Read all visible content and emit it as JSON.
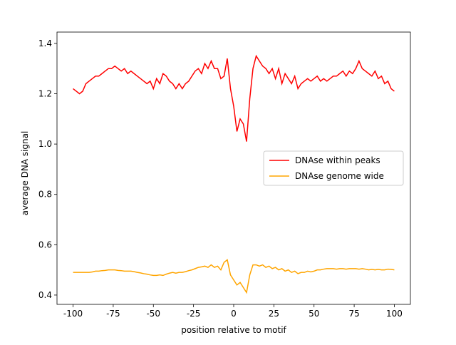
{
  "chart_data": {
    "type": "line",
    "x_label": "position relative to motif",
    "y_label": "average DNA signal",
    "x": [
      -100,
      -98,
      -96,
      -94,
      -92,
      -90,
      -88,
      -86,
      -84,
      -82,
      -80,
      -78,
      -76,
      -74,
      -72,
      -70,
      -68,
      -66,
      -64,
      -62,
      -60,
      -58,
      -56,
      -54,
      -52,
      -50,
      -48,
      -46,
      -44,
      -42,
      -40,
      -38,
      -36,
      -34,
      -32,
      -30,
      -28,
      -26,
      -24,
      -22,
      -20,
      -18,
      -16,
      -14,
      -12,
      -10,
      -8,
      -6,
      -4,
      -2,
      0,
      2,
      4,
      6,
      8,
      10,
      12,
      14,
      16,
      18,
      20,
      22,
      24,
      26,
      28,
      30,
      32,
      34,
      36,
      38,
      40,
      42,
      44,
      46,
      48,
      50,
      52,
      54,
      56,
      58,
      60,
      62,
      64,
      66,
      68,
      70,
      72,
      74,
      76,
      78,
      80,
      82,
      84,
      86,
      88,
      90,
      92,
      94,
      96,
      98,
      100
    ],
    "series": [
      {
        "name": "DNAse within peaks",
        "color": "#ff0000",
        "values": [
          1.22,
          1.21,
          1.2,
          1.21,
          1.24,
          1.25,
          1.26,
          1.27,
          1.27,
          1.28,
          1.29,
          1.3,
          1.3,
          1.31,
          1.3,
          1.29,
          1.3,
          1.28,
          1.29,
          1.28,
          1.27,
          1.26,
          1.25,
          1.24,
          1.25,
          1.22,
          1.26,
          1.24,
          1.28,
          1.27,
          1.25,
          1.24,
          1.22,
          1.24,
          1.22,
          1.24,
          1.25,
          1.27,
          1.29,
          1.3,
          1.28,
          1.32,
          1.3,
          1.33,
          1.3,
          1.3,
          1.26,
          1.27,
          1.34,
          1.22,
          1.15,
          1.05,
          1.1,
          1.08,
          1.01,
          1.18,
          1.3,
          1.35,
          1.33,
          1.31,
          1.3,
          1.28,
          1.3,
          1.26,
          1.3,
          1.24,
          1.28,
          1.26,
          1.24,
          1.27,
          1.22,
          1.24,
          1.25,
          1.26,
          1.25,
          1.26,
          1.27,
          1.25,
          1.26,
          1.25,
          1.26,
          1.27,
          1.27,
          1.28,
          1.29,
          1.27,
          1.29,
          1.28,
          1.3,
          1.33,
          1.3,
          1.29,
          1.28,
          1.27,
          1.29,
          1.26,
          1.27,
          1.24,
          1.25,
          1.22,
          1.21
        ]
      },
      {
        "name": "DNAse genome wide",
        "color": "#ffa500",
        "values": [
          0.49,
          0.49,
          0.49,
          0.49,
          0.49,
          0.49,
          0.492,
          0.495,
          0.495,
          0.497,
          0.498,
          0.5,
          0.5,
          0.5,
          0.498,
          0.497,
          0.495,
          0.495,
          0.495,
          0.493,
          0.49,
          0.488,
          0.485,
          0.483,
          0.48,
          0.478,
          0.478,
          0.48,
          0.478,
          0.483,
          0.487,
          0.49,
          0.487,
          0.49,
          0.49,
          0.493,
          0.497,
          0.5,
          0.505,
          0.51,
          0.512,
          0.515,
          0.51,
          0.52,
          0.51,
          0.515,
          0.5,
          0.53,
          0.54,
          0.48,
          0.46,
          0.44,
          0.45,
          0.43,
          0.41,
          0.48,
          0.52,
          0.52,
          0.515,
          0.52,
          0.51,
          0.515,
          0.505,
          0.51,
          0.5,
          0.505,
          0.495,
          0.5,
          0.49,
          0.495,
          0.485,
          0.49,
          0.49,
          0.495,
          0.492,
          0.495,
          0.5,
          0.5,
          0.503,
          0.505,
          0.505,
          0.505,
          0.503,
          0.505,
          0.505,
          0.503,
          0.505,
          0.505,
          0.505,
          0.503,
          0.505,
          0.503,
          0.5,
          0.502,
          0.5,
          0.502,
          0.5,
          0.5,
          0.503,
          0.502,
          0.5
        ]
      }
    ],
    "xlim": [
      -110,
      110
    ],
    "xticks": [
      -100,
      -75,
      -50,
      -25,
      0,
      25,
      50,
      75,
      100
    ],
    "ylim": [
      0.363,
      1.445
    ],
    "yticks": [
      0.4,
      0.6,
      0.8,
      {
        "value": 1,
        "label": "1.0"
      },
      1.2,
      1.4
    ],
    "legend": "center right"
  }
}
